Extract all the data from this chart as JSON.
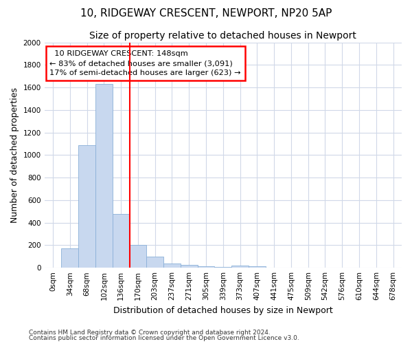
{
  "title": "10, RIDGEWAY CRESCENT, NEWPORT, NP20 5AP",
  "subtitle": "Size of property relative to detached houses in Newport",
  "xlabel": "Distribution of detached houses by size in Newport",
  "ylabel": "Number of detached properties",
  "categories": [
    "0sqm",
    "34sqm",
    "68sqm",
    "102sqm",
    "136sqm",
    "170sqm",
    "203sqm",
    "237sqm",
    "271sqm",
    "305sqm",
    "339sqm",
    "373sqm",
    "407sqm",
    "441sqm",
    "475sqm",
    "509sqm",
    "542sqm",
    "576sqm",
    "610sqm",
    "644sqm",
    "678sqm"
  ],
  "values": [
    0,
    170,
    1090,
    1630,
    480,
    200,
    100,
    40,
    25,
    15,
    5,
    20,
    15,
    0,
    0,
    0,
    0,
    0,
    0,
    0,
    0
  ],
  "bar_color": "#c8d8ef",
  "bar_edge_color": "#8ab0d8",
  "vline_pos": 4.5,
  "ylim": [
    0,
    2000
  ],
  "yticks": [
    0,
    200,
    400,
    600,
    800,
    1000,
    1200,
    1400,
    1600,
    1800,
    2000
  ],
  "annotation_line1": "10 RIDGEWAY CRESCENT: 148sqm",
  "annotation_line2": "← 83% of detached houses are smaller (3,091)",
  "annotation_line3": "17% of semi-detached houses are larger (623) →",
  "footnote1": "Contains HM Land Registry data © Crown copyright and database right 2024.",
  "footnote2": "Contains public sector information licensed under the Open Government Licence v3.0.",
  "bg_color": "#ffffff",
  "plot_bg_color": "#ffffff",
  "grid_color": "#d0d8e8",
  "title_fontsize": 11,
  "subtitle_fontsize": 10,
  "axis_label_fontsize": 9,
  "tick_fontsize": 7.5,
  "footnote_fontsize": 6.5
}
